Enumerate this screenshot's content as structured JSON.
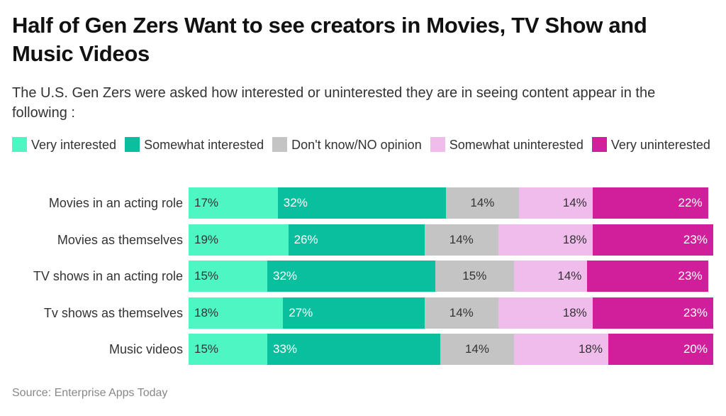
{
  "header": {
    "title": "Half of Gen Zers Want to see creators in Movies, TV Show and Music Videos",
    "subtitle": "The U.S. Gen Zers were asked how interested or uninterested they are in seeing content appear in the following :"
  },
  "legend": [
    {
      "label": "Very interested",
      "color": "#4ef6c4",
      "text_color": "#333333"
    },
    {
      "label": "Somewhat interested",
      "color": "#0abf9e",
      "text_color": "#ffffff"
    },
    {
      "label": "Don't know/NO opinion",
      "color": "#c4c4c4",
      "text_color": "#333333"
    },
    {
      "label": "Somewhat uninterested",
      "color": "#f0bcec",
      "text_color": "#333333"
    },
    {
      "label": "Very uninterested",
      "color": "#d11f9b",
      "text_color": "#ffffff"
    }
  ],
  "source": "Source: Enterprise Apps Today",
  "chart_data": {
    "type": "bar",
    "orientation": "horizontal",
    "stacked": true,
    "title": "Half of Gen Zers Want to see creators in Movies, TV Show and Music Videos",
    "subtitle": "The U.S. Gen Zers were asked how interested or uninterested they are in seeing content appear in the following :",
    "categories": [
      "Movies in an acting role",
      "Movies as themselves",
      "TV shows in an acting role",
      "Tv shows as themselves",
      "Music videos"
    ],
    "series": [
      {
        "name": "Very interested",
        "values": [
          17,
          19,
          15,
          18,
          15
        ]
      },
      {
        "name": "Somewhat interested",
        "values": [
          32,
          26,
          32,
          27,
          33
        ]
      },
      {
        "name": "Don't know/NO opinion",
        "values": [
          14,
          14,
          15,
          14,
          14
        ]
      },
      {
        "name": "Somewhat uninterested",
        "values": [
          14,
          18,
          14,
          18,
          18
        ]
      },
      {
        "name": "Very uninterested",
        "values": [
          22,
          23,
          23,
          23,
          20
        ]
      }
    ],
    "value_format": "{v}%",
    "legend_position": "top",
    "grid": false,
    "source": "Source: Enterprise Apps Today"
  }
}
